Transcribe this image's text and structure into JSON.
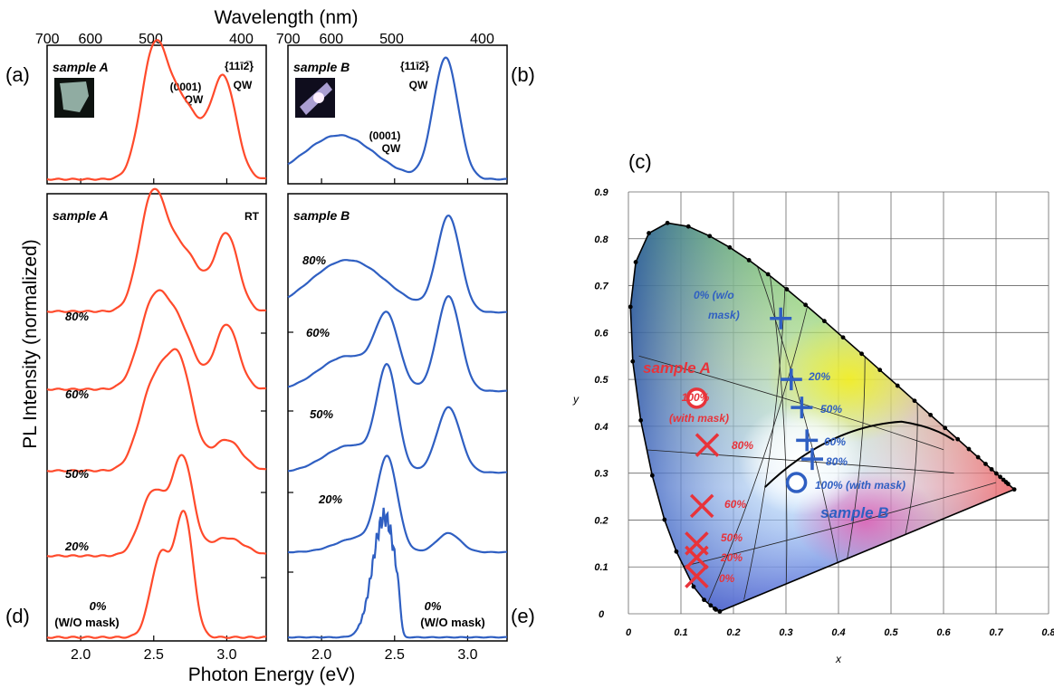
{
  "chart_data": [
    {
      "id": "pl_spectra",
      "type": "line",
      "top_axis": {
        "label": "Wavelength (nm)",
        "ticks_left": [
          "700",
          "600",
          "500",
          "400"
        ],
        "ticks_right": [
          "700",
          "600",
          "500",
          "400"
        ]
      },
      "x_label": "Photon Energy (eV)",
      "y_label": "PL Intensity (normalized)",
      "x_ticks": [
        "2.0",
        "2.5",
        "3.0"
      ],
      "xlim": [
        1.77,
        3.27
      ],
      "panel_letters": {
        "a": "(a)",
        "b": "(b)",
        "d": "(d)",
        "e": "(e)"
      },
      "colors": {
        "sample_A": "#ff4a2b",
        "sample_B": "#2f5fc2"
      },
      "panels": {
        "a": {
          "title": "sample A",
          "labels": {
            "qw0001_line1": "(0001)",
            "qw0001_line2": "QW",
            "qw1122_line1": "{11ī2̅}",
            "qw1122_line2": "QW"
          },
          "peaks": [
            {
              "e": 2.5,
              "a": 0.97,
              "w": 0.09
            },
            {
              "e": 2.7,
              "a": 0.6,
              "w": 0.12
            },
            {
              "e": 2.98,
              "a": 0.81,
              "w": 0.085
            }
          ]
        },
        "b": {
          "title": "sample B",
          "labels": {
            "qw0001_line1": "(0001)",
            "qw0001_line2": "QW",
            "qw1122_line1": "{11ī2̅}",
            "qw1122_line2": "QW"
          },
          "peaks": [
            {
              "e": 2.12,
              "a": 0.36,
              "w": 0.24
            },
            {
              "e": 2.85,
              "a": 0.99,
              "w": 0.085
            }
          ]
        },
        "d": {
          "title": "sample A",
          "note": "RT",
          "series": [
            {
              "name": "80%",
              "peaks": [
                {
                  "e": 2.49,
                  "a": 1.0,
                  "w": 0.09
                },
                {
                  "e": 2.7,
                  "a": 0.55,
                  "w": 0.12
                },
                {
                  "e": 3.0,
                  "a": 0.7,
                  "w": 0.08
                }
              ]
            },
            {
              "name": "60%",
              "peaks": [
                {
                  "e": 2.5,
                  "a": 0.85,
                  "w": 0.1
                },
                {
                  "e": 2.68,
                  "a": 0.55,
                  "w": 0.1
                },
                {
                  "e": 3.0,
                  "a": 0.65,
                  "w": 0.08
                }
              ]
            },
            {
              "name": "50%",
              "peaks": [
                {
                  "e": 2.5,
                  "a": 0.75,
                  "w": 0.1
                },
                {
                  "e": 2.68,
                  "a": 0.9,
                  "w": 0.09
                },
                {
                  "e": 3.0,
                  "a": 0.28,
                  "w": 0.1
                }
              ]
            },
            {
              "name": "20%",
              "peaks": [
                {
                  "e": 2.5,
                  "a": 0.65,
                  "w": 0.09
                },
                {
                  "e": 2.7,
                  "a": 0.95,
                  "w": 0.07
                },
                {
                  "e": 3.0,
                  "a": 0.18,
                  "w": 0.12
                }
              ]
            },
            {
              "name": "0% (W/O mask)",
              "peaks": [
                {
                  "e": 2.55,
                  "a": 0.65,
                  "w": 0.07
                },
                {
                  "e": 2.71,
                  "a": 0.95,
                  "w": 0.06
                }
              ]
            }
          ]
        },
        "e": {
          "title": "sample B",
          "series": [
            {
              "name": "80%",
              "peaks": [
                {
                  "e": 2.18,
                  "a": 0.55,
                  "w": 0.26
                },
                {
                  "e": 2.87,
                  "a": 1.0,
                  "w": 0.08
                }
              ]
            },
            {
              "name": "60%",
              "peaks": [
                {
                  "e": 2.18,
                  "a": 0.35,
                  "w": 0.2
                },
                {
                  "e": 2.45,
                  "a": 0.65,
                  "w": 0.08
                },
                {
                  "e": 2.87,
                  "a": 0.95,
                  "w": 0.08
                }
              ]
            },
            {
              "name": "50%",
              "peaks": [
                {
                  "e": 2.2,
                  "a": 0.25,
                  "w": 0.18
                },
                {
                  "e": 2.45,
                  "a": 0.9,
                  "w": 0.07
                },
                {
                  "e": 2.87,
                  "a": 0.6,
                  "w": 0.08
                }
              ]
            },
            {
              "name": "20%",
              "peaks": [
                {
                  "e": 2.25,
                  "a": 0.15,
                  "w": 0.15
                },
                {
                  "e": 2.45,
                  "a": 0.95,
                  "w": 0.07
                },
                {
                  "e": 2.87,
                  "a": 0.2,
                  "w": 0.08
                }
              ]
            },
            {
              "name": "0% (W/O mask)",
              "peaks": [
                {
                  "e": 2.43,
                  "a": 0.95,
                  "w": 0.08
                }
              ],
              "cutoff": 2.52,
              "ripple": true
            }
          ]
        }
      }
    },
    {
      "id": "cie_diagram",
      "type": "scatter",
      "panel_letter": "(c)",
      "xlabel": "x",
      "ylabel": "y",
      "xlim": [
        0,
        0.8
      ],
      "ylim": [
        0,
        0.9
      ],
      "x_ticks": [
        "0",
        "0.1",
        "0.2",
        "0.3",
        "0.4",
        "0.5",
        "0.6",
        "0.7",
        "0.8"
      ],
      "y_ticks": [
        "0",
        "0.1",
        "0.2",
        "0.3",
        "0.4",
        "0.5",
        "0.6",
        "0.7",
        "0.8",
        "0.9"
      ],
      "grid": true,
      "locus": [
        [
          0.1741,
          0.005
        ],
        [
          0.1738,
          0.0049
        ],
        [
          0.1666,
          0.0089
        ],
        [
          0.1644,
          0.0109
        ],
        [
          0.1566,
          0.0177
        ],
        [
          0.144,
          0.0297
        ],
        [
          0.1241,
          0.0578
        ],
        [
          0.0913,
          0.1327
        ],
        [
          0.0687,
          0.2007
        ],
        [
          0.0454,
          0.295
        ],
        [
          0.0235,
          0.4127
        ],
        [
          0.0082,
          0.5384
        ],
        [
          0.0039,
          0.6548
        ],
        [
          0.0139,
          0.7502
        ],
        [
          0.0389,
          0.812
        ],
        [
          0.0743,
          0.8338
        ],
        [
          0.1142,
          0.8262
        ],
        [
          0.1547,
          0.8059
        ],
        [
          0.1929,
          0.7816
        ],
        [
          0.2296,
          0.7543
        ],
        [
          0.2658,
          0.7243
        ],
        [
          0.3016,
          0.6923
        ],
        [
          0.3373,
          0.6589
        ],
        [
          0.3731,
          0.6245
        ],
        [
          0.4087,
          0.5896
        ],
        [
          0.4441,
          0.5547
        ],
        [
          0.4788,
          0.5202
        ],
        [
          0.5125,
          0.4866
        ],
        [
          0.5448,
          0.4544
        ],
        [
          0.5752,
          0.4242
        ],
        [
          0.6029,
          0.3965
        ],
        [
          0.627,
          0.3725
        ],
        [
          0.6482,
          0.3514
        ],
        [
          0.6658,
          0.334
        ],
        [
          0.6801,
          0.3197
        ],
        [
          0.6915,
          0.3083
        ],
        [
          0.7006,
          0.2993
        ],
        [
          0.7079,
          0.292
        ],
        [
          0.714,
          0.2859
        ],
        [
          0.719,
          0.2809
        ],
        [
          0.723,
          0.277
        ],
        [
          0.7347,
          0.2653
        ]
      ],
      "sample_A": {
        "label": "sample A",
        "color": "#e8333a",
        "points": [
          {
            "label": "100% (with mask)",
            "label_line1": "100%",
            "label_line2": "(with mask)",
            "x": 0.13,
            "y": 0.46,
            "marker": "circle"
          },
          {
            "label": "80%",
            "x": 0.15,
            "y": 0.36,
            "marker": "x"
          },
          {
            "label": "60%",
            "x": 0.14,
            "y": 0.23,
            "marker": "x"
          },
          {
            "label": "50%",
            "x": 0.13,
            "y": 0.15,
            "marker": "x"
          },
          {
            "label": "20%",
            "x": 0.13,
            "y": 0.12,
            "marker": "x"
          },
          {
            "label": "0%",
            "x": 0.13,
            "y": 0.08,
            "marker": "x"
          }
        ]
      },
      "sample_B": {
        "label": "sample B",
        "color": "#2f5fc2",
        "points": [
          {
            "label": "0% (w/o mask)",
            "label_line1": "0% (w/o",
            "label_line2": "mask)",
            "x": 0.29,
            "y": 0.63,
            "marker": "plus"
          },
          {
            "label": "20%",
            "x": 0.31,
            "y": 0.5,
            "marker": "plus"
          },
          {
            "label": "50%",
            "x": 0.33,
            "y": 0.44,
            "marker": "plus"
          },
          {
            "label": "60%",
            "x": 0.34,
            "y": 0.37,
            "marker": "plus"
          },
          {
            "label": "80%",
            "x": 0.35,
            "y": 0.33,
            "marker": "plus"
          },
          {
            "label": "100% (with mask)",
            "x": 0.32,
            "y": 0.28,
            "marker": "circle"
          }
        ]
      }
    }
  ]
}
